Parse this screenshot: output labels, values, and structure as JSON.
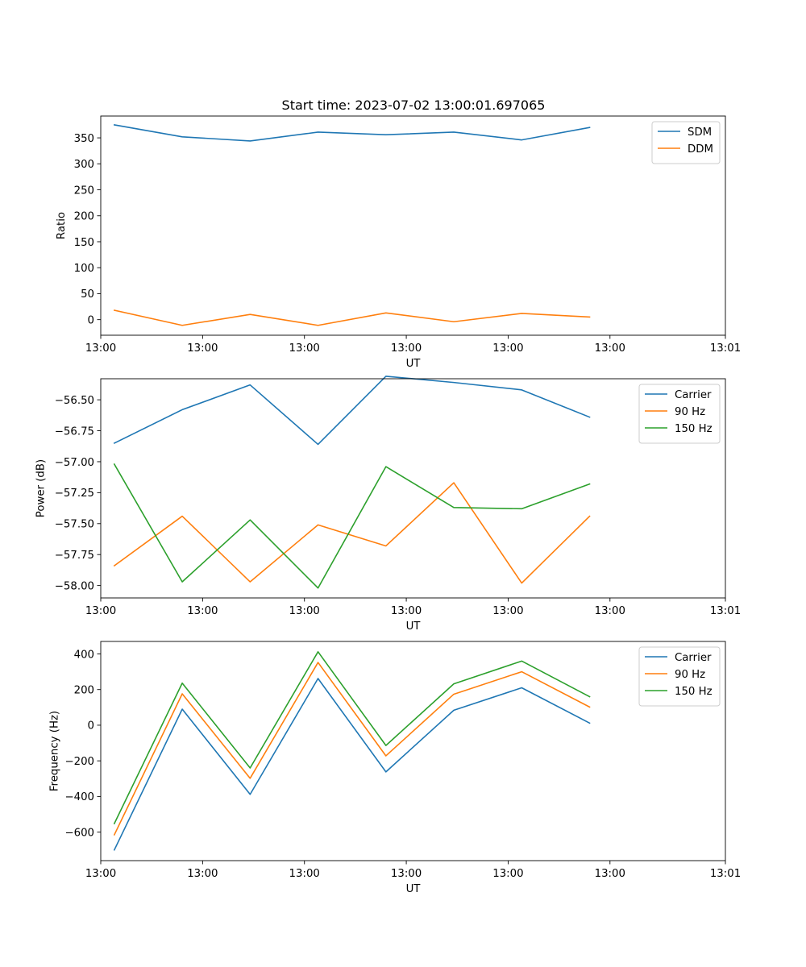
{
  "figure": {
    "title": "Start time: 2023-07-02 13:00:01.697065"
  },
  "chart_data": [
    {
      "type": "line",
      "title": "Start time: 2023-07-02 13:00:01.697065",
      "xlabel": "UT",
      "ylabel": "Ratio",
      "x": [
        1,
        2,
        3,
        4,
        5,
        6,
        7,
        8
      ],
      "xlim": [
        0.8,
        10.0
      ],
      "xticks": [
        0.8,
        2.3,
        3.8,
        5.3,
        6.8,
        8.3,
        10.0
      ],
      "xtick_labels": [
        "13:00",
        "13:00",
        "13:00",
        "13:00",
        "13:00",
        "13:00",
        "13:01"
      ],
      "ylim": [
        -30,
        392
      ],
      "yticks": [
        0,
        50,
        100,
        150,
        200,
        250,
        300,
        350
      ],
      "ytick_labels": [
        "0",
        "50",
        "100",
        "150",
        "200",
        "250",
        "300",
        "350"
      ],
      "legend_position": "top-right",
      "series": [
        {
          "name": "SDM",
          "color": "#1f77b4",
          "values": [
            375,
            352,
            344,
            361,
            356,
            361,
            346,
            370
          ]
        },
        {
          "name": "DDM",
          "color": "#ff7f0e",
          "values": [
            18,
            -11,
            10,
            -11,
            13,
            -4,
            12,
            5
          ]
        }
      ]
    },
    {
      "type": "line",
      "title": "",
      "xlabel": "UT",
      "ylabel": "Power (dB)",
      "x": [
        1,
        2,
        3,
        4,
        5,
        6,
        7,
        8
      ],
      "xlim": [
        0.8,
        10.0
      ],
      "xticks": [
        0.8,
        2.3,
        3.8,
        5.3,
        6.8,
        8.3,
        10.0
      ],
      "xtick_labels": [
        "13:00",
        "13:00",
        "13:00",
        "13:00",
        "13:00",
        "13:00",
        "13:01"
      ],
      "ylim": [
        -58.1,
        -56.33
      ],
      "yticks": [
        -58.0,
        -57.75,
        -57.5,
        -57.25,
        -57.0,
        -56.75,
        -56.5
      ],
      "ytick_labels": [
        "−58.00",
        "−57.75",
        "−57.50",
        "−57.25",
        "−57.00",
        "−56.75",
        "−56.50"
      ],
      "legend_position": "top-right",
      "series": [
        {
          "name": "Carrier",
          "color": "#1f77b4",
          "values": [
            -56.85,
            -56.58,
            -56.38,
            -56.86,
            -56.31,
            -56.36,
            -56.42,
            -56.64
          ]
        },
        {
          "name": "90 Hz",
          "color": "#ff7f0e",
          "values": [
            -57.84,
            -57.44,
            -57.97,
            -57.51,
            -57.68,
            -57.17,
            -57.98,
            -57.44
          ]
        },
        {
          "name": "150 Hz",
          "color": "#2ca02c",
          "values": [
            -57.02,
            -57.97,
            -57.47,
            -58.02,
            -57.04,
            -57.37,
            -57.38,
            -57.18
          ]
        }
      ]
    },
    {
      "type": "line",
      "title": "",
      "xlabel": "UT",
      "ylabel": "Frequency (Hz)",
      "x": [
        1,
        2,
        3,
        4,
        5,
        6,
        7,
        8
      ],
      "xlim": [
        0.8,
        10.0
      ],
      "xticks": [
        0.8,
        2.3,
        3.8,
        5.3,
        6.8,
        8.3,
        10.0
      ],
      "xtick_labels": [
        "13:00",
        "13:00",
        "13:00",
        "13:00",
        "13:00",
        "13:00",
        "13:01"
      ],
      "ylim": [
        -760,
        470
      ],
      "yticks": [
        -600,
        -400,
        -200,
        0,
        200,
        400
      ],
      "ytick_labels": [
        "−600",
        "−400",
        "−200",
        "0",
        "200",
        "400"
      ],
      "legend_position": "top-right",
      "series": [
        {
          "name": "Carrier",
          "color": "#1f77b4",
          "values": [
            -700,
            90,
            -388,
            262,
            -262,
            84,
            210,
            12
          ]
        },
        {
          "name": "90 Hz",
          "color": "#ff7f0e",
          "values": [
            -615,
            176,
            -298,
            352,
            -172,
            174,
            300,
            102
          ]
        },
        {
          "name": "150 Hz",
          "color": "#2ca02c",
          "values": [
            -552,
            236,
            -240,
            412,
            -114,
            232,
            360,
            160
          ]
        }
      ]
    }
  ]
}
